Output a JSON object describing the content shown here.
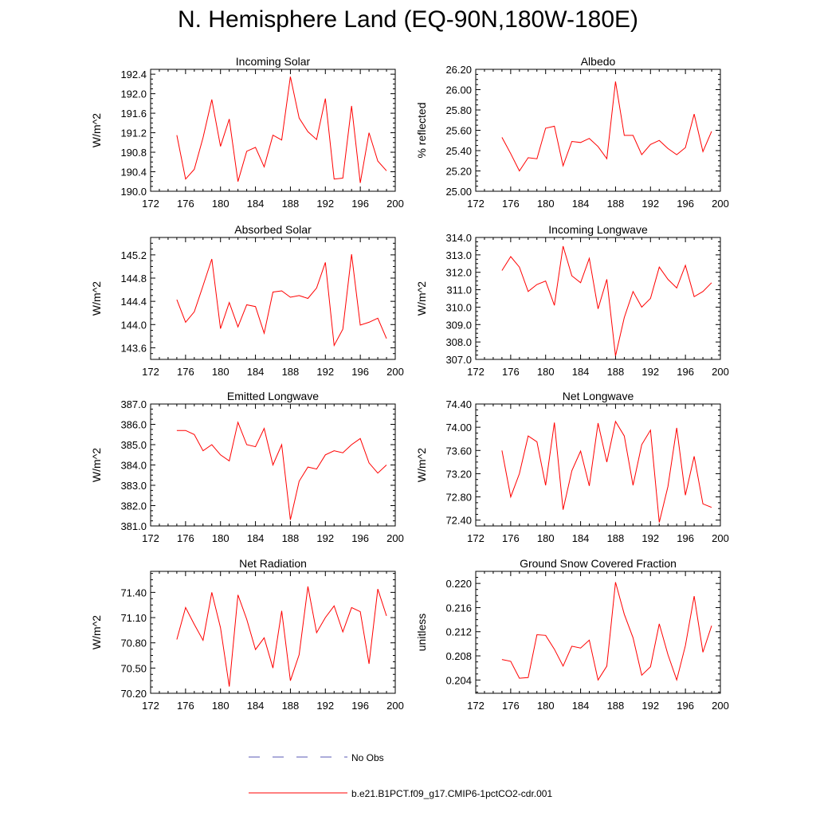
{
  "title": "N. Hemisphere Land (EQ-90N,180W-180E)",
  "legend": {
    "no_obs": "No Obs",
    "case": "b.e21.B1PCT.f09_g17.CMIP6-1pctCO2-cdr.001",
    "no_obs_color": "#5a5ab4",
    "case_color": "#ff0000"
  },
  "chart_data": [
    {
      "type": "line",
      "title": "Incoming Solar",
      "ylabel": "W/m^2",
      "xlim": [
        172,
        200
      ],
      "xticks": [
        "172",
        "176",
        "180",
        "184",
        "188",
        "192",
        "196",
        "200"
      ],
      "ylim": [
        190.0,
        192.5
      ],
      "yticks": [
        "190.0",
        "190.4",
        "190.8",
        "191.2",
        "191.6",
        "192.0",
        "192.4"
      ],
      "series": [
        {
          "color": "#ff0000",
          "x": [
            175,
            176,
            177,
            178,
            179,
            180,
            181,
            182,
            183,
            184,
            185,
            186,
            187,
            188,
            189,
            190,
            191,
            192,
            193,
            194,
            195,
            196,
            197,
            198,
            199
          ],
          "y": [
            191.15,
            190.25,
            190.45,
            191.1,
            191.88,
            190.92,
            191.48,
            190.2,
            190.82,
            190.9,
            190.5,
            191.15,
            191.05,
            192.35,
            191.5,
            191.22,
            191.06,
            191.9,
            190.25,
            190.27,
            191.75,
            190.17,
            191.2,
            190.62,
            190.42
          ]
        }
      ]
    },
    {
      "type": "line",
      "title": "Albedo",
      "ylabel": "% reflected",
      "xlim": [
        172,
        200
      ],
      "xticks": [
        "172",
        "176",
        "180",
        "184",
        "188",
        "192",
        "196",
        "200"
      ],
      "ylim": [
        25.0,
        26.2
      ],
      "yticks": [
        "25.00",
        "25.20",
        "25.40",
        "25.60",
        "25.80",
        "26.00",
        "26.20"
      ],
      "series": [
        {
          "color": "#ff0000",
          "x": [
            175,
            176,
            177,
            178,
            179,
            180,
            181,
            182,
            183,
            184,
            185,
            186,
            187,
            188,
            189,
            190,
            191,
            192,
            193,
            194,
            195,
            196,
            197,
            198,
            199
          ],
          "y": [
            25.53,
            25.37,
            25.2,
            25.33,
            25.32,
            25.62,
            25.64,
            25.25,
            25.49,
            25.48,
            25.52,
            25.44,
            25.32,
            26.08,
            25.55,
            25.55,
            25.36,
            25.46,
            25.5,
            25.42,
            25.36,
            25.43,
            25.76,
            25.39,
            25.59
          ]
        }
      ]
    },
    {
      "type": "line",
      "title": "Absorbed Solar",
      "ylabel": "W/m^2",
      "xlim": [
        172,
        200
      ],
      "xticks": [
        "172",
        "176",
        "180",
        "184",
        "188",
        "192",
        "196",
        "200"
      ],
      "ylim": [
        143.4,
        145.5
      ],
      "yticks": [
        "143.6",
        "144.0",
        "144.4",
        "144.8",
        "145.2"
      ],
      "series": [
        {
          "color": "#ff0000",
          "x": [
            175,
            176,
            177,
            178,
            179,
            180,
            181,
            182,
            183,
            184,
            185,
            186,
            187,
            188,
            189,
            190,
            191,
            192,
            193,
            194,
            195,
            196,
            197,
            198,
            199
          ],
          "y": [
            144.43,
            144.04,
            144.22,
            144.67,
            145.13,
            143.93,
            144.38,
            143.96,
            144.34,
            144.31,
            143.85,
            144.56,
            144.58,
            144.47,
            144.5,
            144.45,
            144.63,
            145.07,
            143.64,
            143.92,
            145.21,
            143.99,
            144.04,
            144.11,
            143.76
          ]
        }
      ]
    },
    {
      "type": "line",
      "title": "Incoming Longwave",
      "ylabel": "W/m^2",
      "xlim": [
        172,
        200
      ],
      "xticks": [
        "172",
        "176",
        "180",
        "184",
        "188",
        "192",
        "196",
        "200"
      ],
      "ylim": [
        307.0,
        314.0
      ],
      "yticks": [
        "307.0",
        "308.0",
        "309.0",
        "310.0",
        "311.0",
        "312.0",
        "313.0",
        "314.0"
      ],
      "series": [
        {
          "color": "#ff0000",
          "x": [
            175,
            176,
            177,
            178,
            179,
            180,
            181,
            182,
            183,
            184,
            185,
            186,
            187,
            188,
            189,
            190,
            191,
            192,
            193,
            194,
            195,
            196,
            197,
            198,
            199
          ],
          "y": [
            312.1,
            312.9,
            312.3,
            310.9,
            311.3,
            311.5,
            310.1,
            313.5,
            311.8,
            311.4,
            312.8,
            309.9,
            311.6,
            307.2,
            309.4,
            310.9,
            310.0,
            310.5,
            312.3,
            311.6,
            311.1,
            312.4,
            310.6,
            310.9,
            311.4
          ]
        }
      ]
    },
    {
      "type": "line",
      "title": "Emitted Longwave",
      "ylabel": "W/m^2",
      "xlim": [
        172,
        200
      ],
      "xticks": [
        "172",
        "176",
        "180",
        "184",
        "188",
        "192",
        "196",
        "200"
      ],
      "ylim": [
        381.0,
        387.0
      ],
      "yticks": [
        "381.0",
        "382.0",
        "383.0",
        "384.0",
        "385.0",
        "386.0",
        "387.0"
      ],
      "series": [
        {
          "color": "#ff0000",
          "x": [
            175,
            176,
            177,
            178,
            179,
            180,
            181,
            182,
            183,
            184,
            185,
            186,
            187,
            188,
            189,
            190,
            191,
            192,
            193,
            194,
            195,
            196,
            197,
            198,
            199
          ],
          "y": [
            385.7,
            385.7,
            385.5,
            384.7,
            385.0,
            384.5,
            384.2,
            386.1,
            385.0,
            384.9,
            385.8,
            384.0,
            385.0,
            381.3,
            383.2,
            383.9,
            383.8,
            384.5,
            384.7,
            384.6,
            385.0,
            385.3,
            384.1,
            383.6,
            384.0
          ]
        }
      ]
    },
    {
      "type": "line",
      "title": "Net Longwave",
      "ylabel": "W/m^2",
      "xlim": [
        172,
        200
      ],
      "xticks": [
        "172",
        "176",
        "180",
        "184",
        "188",
        "192",
        "196",
        "200"
      ],
      "ylim": [
        72.3,
        74.4
      ],
      "yticks": [
        "72.40",
        "72.80",
        "73.20",
        "73.60",
        "74.00",
        "74.40"
      ],
      "series": [
        {
          "color": "#ff0000",
          "x": [
            175,
            176,
            177,
            178,
            179,
            180,
            181,
            182,
            183,
            184,
            185,
            186,
            187,
            188,
            189,
            190,
            191,
            192,
            193,
            194,
            195,
            196,
            197,
            198,
            199
          ],
          "y": [
            73.6,
            72.8,
            73.2,
            73.85,
            73.75,
            73.0,
            74.08,
            72.58,
            73.25,
            73.59,
            72.99,
            74.07,
            73.4,
            74.1,
            73.85,
            73.0,
            73.7,
            73.95,
            72.36,
            72.98,
            73.99,
            72.83,
            73.5,
            72.68,
            72.62
          ]
        }
      ]
    },
    {
      "type": "line",
      "title": "Net Radiation",
      "ylabel": "W/m^2",
      "xlim": [
        172,
        200
      ],
      "xticks": [
        "172",
        "176",
        "180",
        "184",
        "188",
        "192",
        "196",
        "200"
      ],
      "ylim": [
        70.2,
        71.65
      ],
      "yticks": [
        "70.20",
        "70.50",
        "70.80",
        "71.10",
        "71.40"
      ],
      "series": [
        {
          "color": "#ff0000",
          "x": [
            175,
            176,
            177,
            178,
            179,
            180,
            181,
            182,
            183,
            184,
            185,
            186,
            187,
            188,
            189,
            190,
            191,
            192,
            193,
            194,
            195,
            196,
            197,
            198,
            199
          ],
          "y": [
            70.84,
            71.22,
            71.02,
            70.83,
            71.4,
            70.98,
            70.28,
            71.37,
            71.08,
            70.72,
            70.86,
            70.5,
            71.18,
            70.35,
            70.66,
            71.47,
            70.92,
            71.1,
            71.24,
            70.93,
            71.22,
            71.17,
            70.55,
            71.44,
            71.12
          ]
        }
      ]
    },
    {
      "type": "line",
      "title": "Ground Snow Covered Fraction",
      "ylabel": "unitless",
      "xlim": [
        172,
        200
      ],
      "xticks": [
        "172",
        "176",
        "180",
        "184",
        "188",
        "192",
        "196",
        "200"
      ],
      "ylim": [
        0.2018,
        0.222
      ],
      "yticks": [
        "0.204",
        "0.208",
        "0.212",
        "0.216",
        "0.220"
      ],
      "series": [
        {
          "color": "#ff0000",
          "x": [
            175,
            176,
            177,
            178,
            179,
            180,
            181,
            182,
            183,
            184,
            185,
            186,
            187,
            188,
            189,
            190,
            191,
            192,
            193,
            194,
            195,
            196,
            197,
            198,
            199
          ],
          "y": [
            0.2074,
            0.2071,
            0.2043,
            0.2044,
            0.2115,
            0.2114,
            0.2091,
            0.2063,
            0.2096,
            0.2093,
            0.2106,
            0.204,
            0.2063,
            0.2202,
            0.2149,
            0.211,
            0.2048,
            0.2062,
            0.2133,
            0.2082,
            0.204,
            0.2097,
            0.2179,
            0.2086,
            0.213
          ]
        }
      ]
    }
  ]
}
